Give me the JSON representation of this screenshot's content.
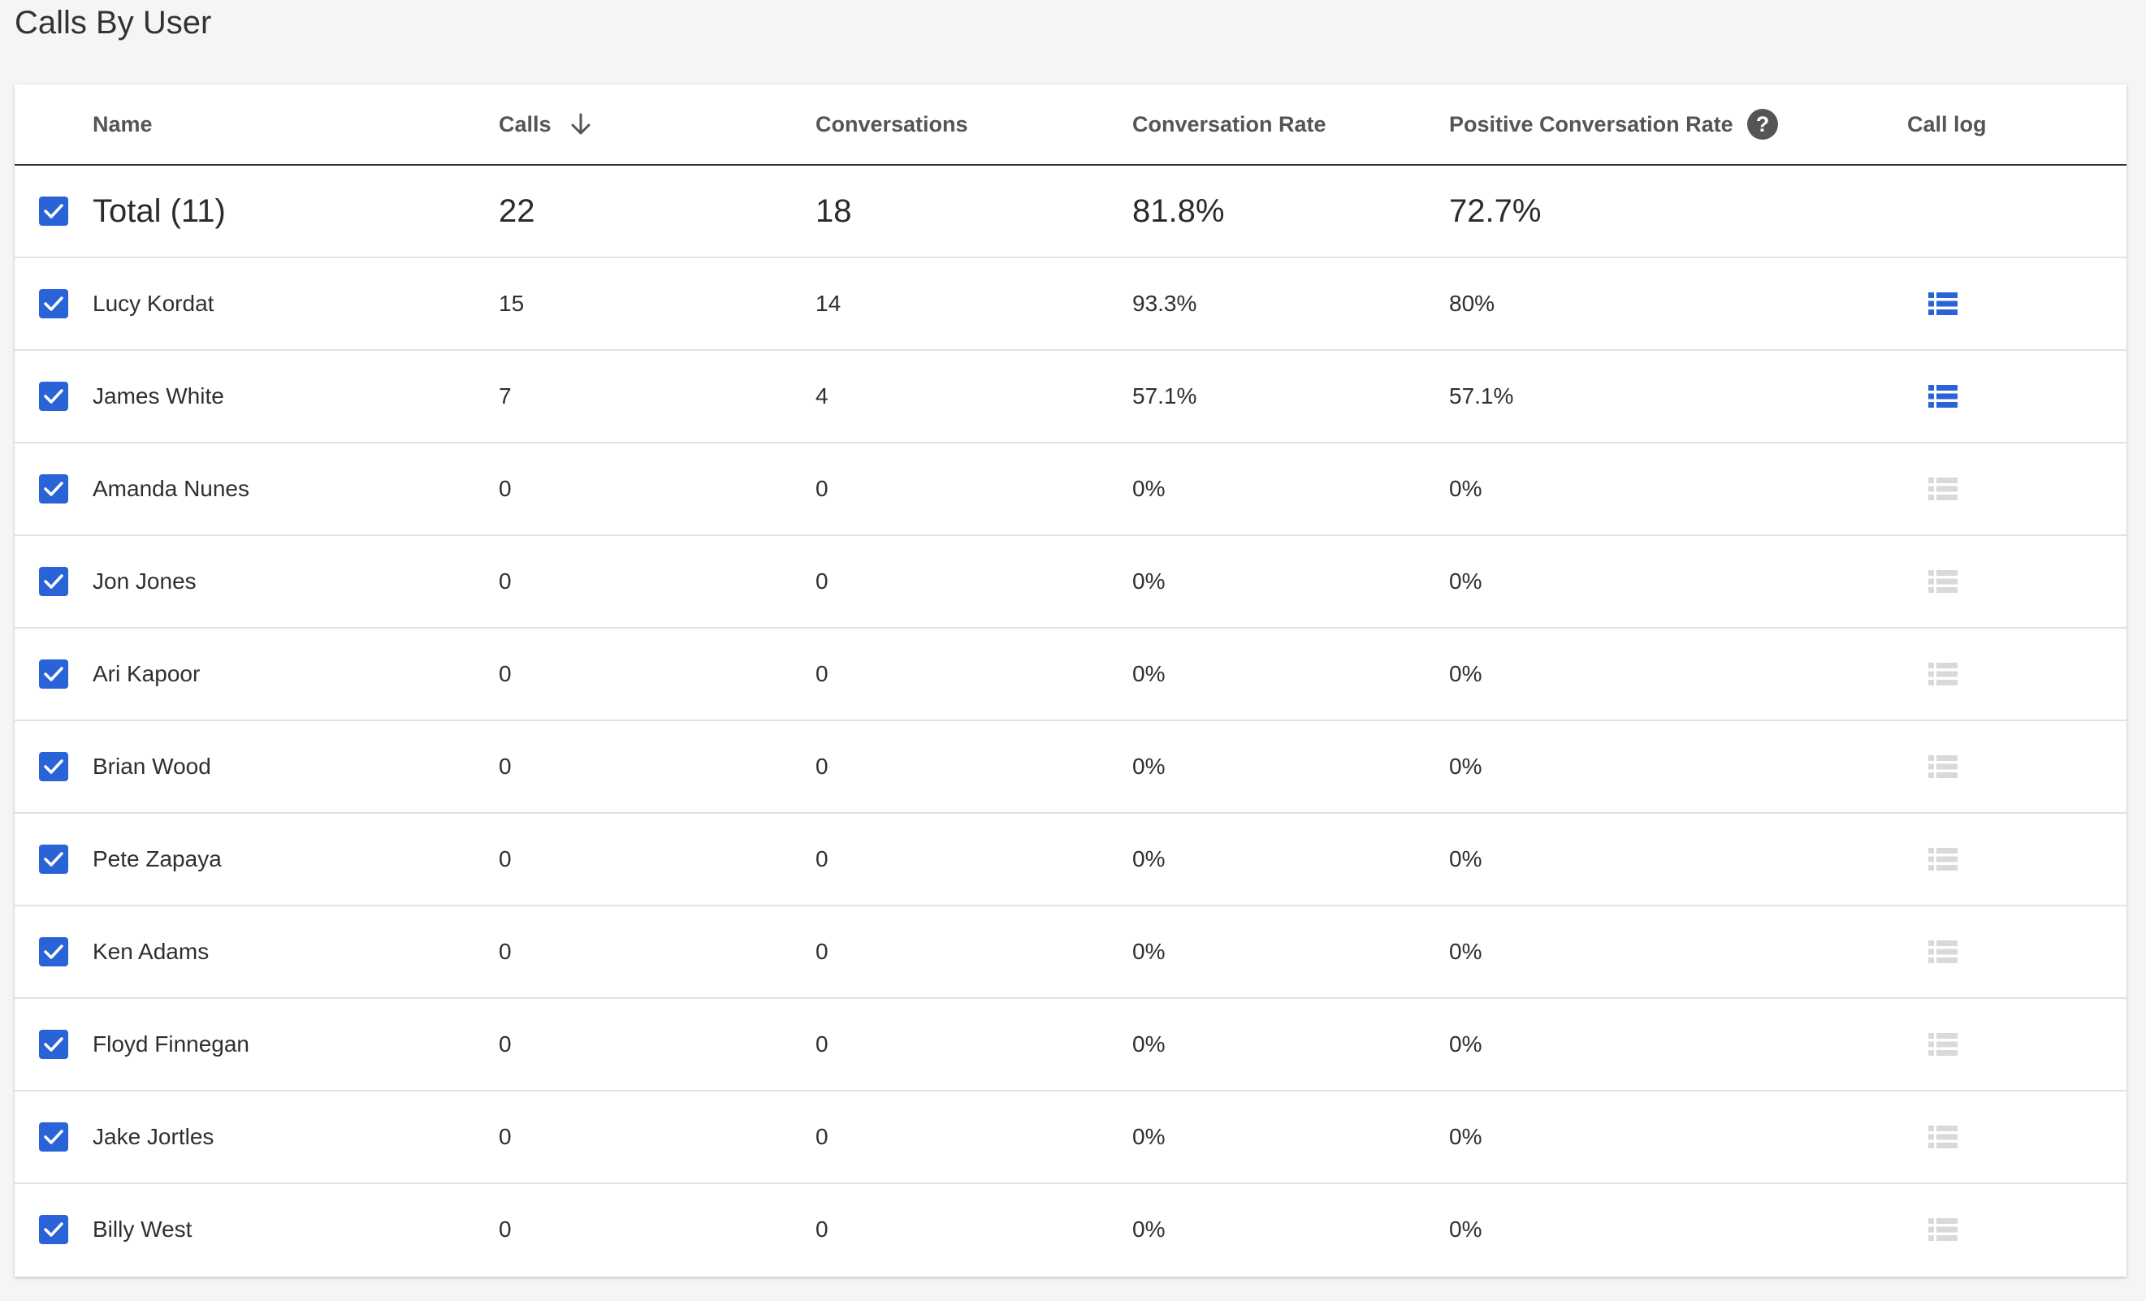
{
  "page": {
    "title": "Calls By User"
  },
  "table": {
    "headers": {
      "name": "Name",
      "calls": "Calls",
      "conversations": "Conversations",
      "conversation_rate": "Conversation Rate",
      "positive_conversation_rate": "Positive Conversation Rate",
      "call_log": "Call log"
    },
    "sort": {
      "column": "Calls",
      "direction": "descending"
    },
    "total": {
      "name": "Total (11)",
      "calls": "22",
      "conversations": "18",
      "conversation_rate": "81.8%",
      "positive_conversation_rate": "72.7%",
      "checked": true
    },
    "rows": [
      {
        "name": "Lucy Kordat",
        "calls": "15",
        "conversations": "14",
        "conversation_rate": "93.3%",
        "positive_conversation_rate": "80%",
        "checked": true,
        "call_log_active": true
      },
      {
        "name": "James White",
        "calls": "7",
        "conversations": "4",
        "conversation_rate": "57.1%",
        "positive_conversation_rate": "57.1%",
        "checked": true,
        "call_log_active": true
      },
      {
        "name": "Amanda Nunes",
        "calls": "0",
        "conversations": "0",
        "conversation_rate": "0%",
        "positive_conversation_rate": "0%",
        "checked": true,
        "call_log_active": false
      },
      {
        "name": "Jon Jones",
        "calls": "0",
        "conversations": "0",
        "conversation_rate": "0%",
        "positive_conversation_rate": "0%",
        "checked": true,
        "call_log_active": false
      },
      {
        "name": "Ari Kapoor",
        "calls": "0",
        "conversations": "0",
        "conversation_rate": "0%",
        "positive_conversation_rate": "0%",
        "checked": true,
        "call_log_active": false
      },
      {
        "name": "Brian Wood",
        "calls": "0",
        "conversations": "0",
        "conversation_rate": "0%",
        "positive_conversation_rate": "0%",
        "checked": true,
        "call_log_active": false
      },
      {
        "name": "Pete Zapaya",
        "calls": "0",
        "conversations": "0",
        "conversation_rate": "0%",
        "positive_conversation_rate": "0%",
        "checked": true,
        "call_log_active": false
      },
      {
        "name": "Ken Adams",
        "calls": "0",
        "conversations": "0",
        "conversation_rate": "0%",
        "positive_conversation_rate": "0%",
        "checked": true,
        "call_log_active": false
      },
      {
        "name": "Floyd Finnegan",
        "calls": "0",
        "conversations": "0",
        "conversation_rate": "0%",
        "positive_conversation_rate": "0%",
        "checked": true,
        "call_log_active": false
      },
      {
        "name": "Jake Jortles",
        "calls": "0",
        "conversations": "0",
        "conversation_rate": "0%",
        "positive_conversation_rate": "0%",
        "checked": true,
        "call_log_active": false
      },
      {
        "name": "Billy West",
        "calls": "0",
        "conversations": "0",
        "conversation_rate": "0%",
        "positive_conversation_rate": "0%",
        "checked": true,
        "call_log_active": false
      }
    ]
  },
  "icons": {
    "checkbox": "checkbox-checked-icon",
    "sort": "arrow-down-icon",
    "help": "help-circle-icon",
    "call_log": "list-icon"
  },
  "colors": {
    "accent": "#2a63d8",
    "call_log_active": "#2a63d8",
    "call_log_inactive": "#d9d9d9",
    "help_icon": "#555555"
  }
}
